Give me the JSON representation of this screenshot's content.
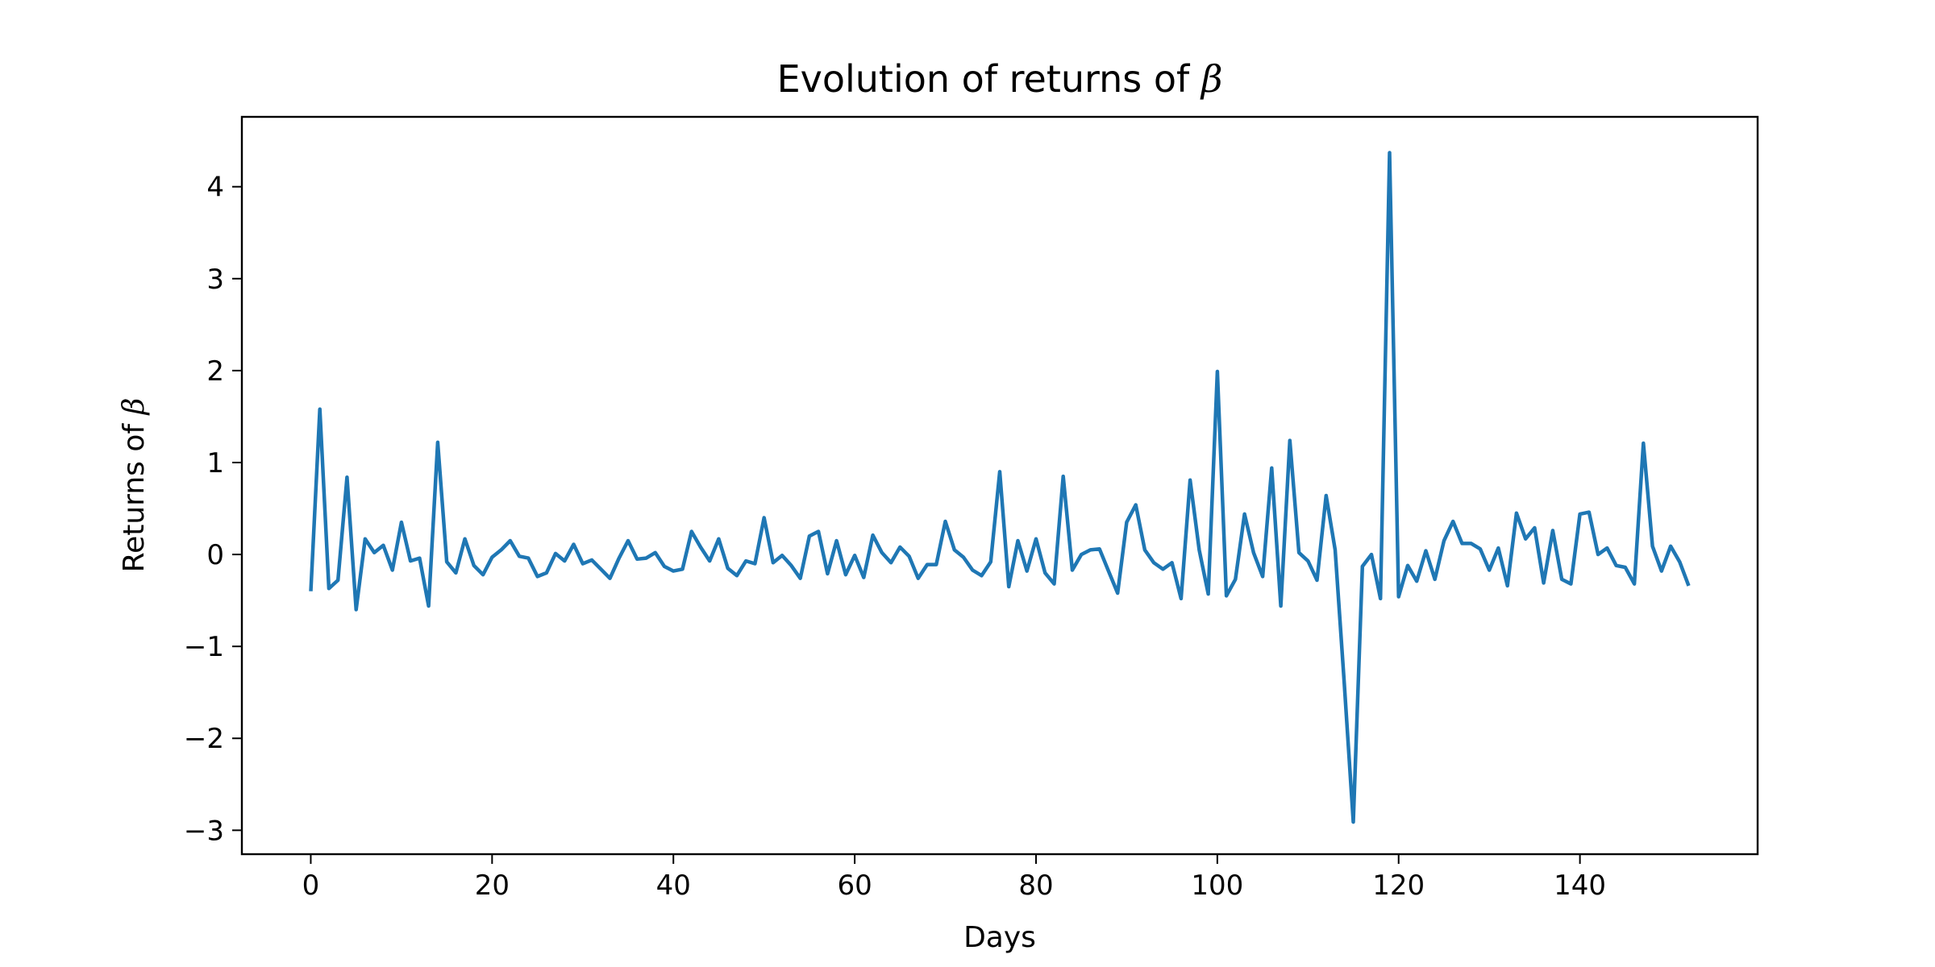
{
  "chart_data": {
    "type": "line",
    "title": "Evolution of returns of ",
    "title_symbol": "β",
    "xlabel": "Days",
    "ylabel": "Returns of ",
    "ylabel_symbol": "β",
    "xlim": [
      -7.6,
      159.6
    ],
    "ylim": [
      -3.26,
      4.76
    ],
    "xticks": [
      0,
      20,
      40,
      60,
      80,
      100,
      120,
      140
    ],
    "xtick_labels": [
      "0",
      "20",
      "40",
      "60",
      "80",
      "100",
      "120",
      "140"
    ],
    "yticks": [
      -3,
      -2,
      -1,
      0,
      1,
      2,
      3,
      4
    ],
    "ytick_labels": [
      "−3",
      "−2",
      "−1",
      "0",
      "1",
      "2",
      "3",
      "4"
    ],
    "grid": false,
    "legend": false,
    "series": [
      {
        "color": "#1f77b4",
        "x_start": 0,
        "x_step": 1,
        "values": [
          -0.4,
          1.58,
          -0.37,
          -0.28,
          0.84,
          -0.6,
          0.17,
          0.02,
          0.1,
          -0.17,
          0.35,
          -0.07,
          -0.04,
          -0.56,
          1.22,
          -0.08,
          -0.2,
          0.17,
          -0.12,
          -0.22,
          -0.03,
          0.05,
          0.15,
          -0.02,
          -0.04,
          -0.24,
          -0.2,
          0.01,
          -0.07,
          0.11,
          -0.1,
          -0.06,
          -0.16,
          -0.26,
          -0.04,
          0.15,
          -0.05,
          -0.04,
          0.02,
          -0.13,
          -0.18,
          -0.16,
          0.25,
          0.08,
          -0.07,
          0.17,
          -0.15,
          -0.23,
          -0.07,
          -0.1,
          0.4,
          -0.09,
          -0.01,
          -0.12,
          -0.26,
          0.2,
          0.25,
          -0.21,
          0.15,
          -0.22,
          -0.01,
          -0.25,
          0.21,
          0.02,
          -0.09,
          0.08,
          -0.02,
          -0.26,
          -0.11,
          -0.11,
          0.36,
          0.05,
          -0.03,
          -0.17,
          -0.23,
          -0.08,
          0.9,
          -0.35,
          0.15,
          -0.18,
          0.17,
          -0.2,
          -0.32,
          0.85,
          -0.17,
          0.0,
          0.05,
          0.06,
          -0.18,
          -0.42,
          0.35,
          0.54,
          0.05,
          -0.09,
          -0.16,
          -0.09,
          -0.48,
          0.81,
          0.05,
          -0.43,
          1.99,
          -0.45,
          -0.27,
          0.44,
          0.02,
          -0.24,
          0.94,
          -0.56,
          1.24,
          0.02,
          -0.07,
          -0.28,
          0.64,
          0.05,
          -1.4,
          -2.91,
          -0.13,
          0.0,
          -0.48,
          4.37,
          -0.46,
          -0.12,
          -0.29,
          0.04,
          -0.27,
          0.15,
          0.36,
          0.12,
          0.12,
          0.06,
          -0.17,
          0.07,
          -0.34,
          0.45,
          0.17,
          0.29,
          -0.31,
          0.26,
          -0.27,
          -0.32,
          0.44,
          0.46,
          0.0,
          0.07,
          -0.12,
          -0.14,
          -0.32,
          1.21,
          0.09,
          -0.18,
          0.09,
          -0.08,
          -0.34
        ]
      }
    ]
  }
}
